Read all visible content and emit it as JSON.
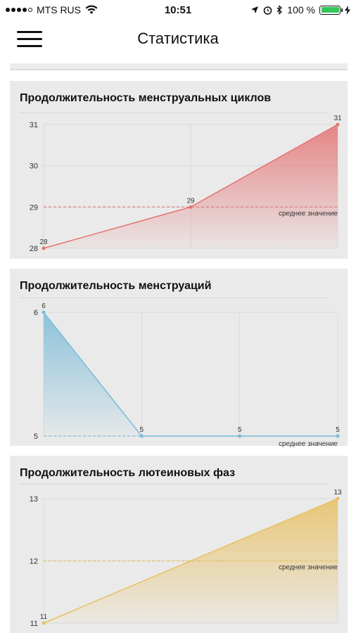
{
  "status_bar": {
    "carrier": "MTS RUS",
    "time": "10:51",
    "battery_percent": "100 %",
    "battery_level": 1.0,
    "signal_bars": 4
  },
  "nav": {
    "title": "Статистика"
  },
  "colors": {
    "red": "#e57373",
    "blue": "#7bbbd9",
    "yellow": "#e8c062"
  },
  "charts": [
    {
      "title": "Продолжительность менструальных циклов",
      "average_label": "среднее значение",
      "color": "#e57373",
      "chart_data": {
        "type": "area",
        "x": [
          1,
          2,
          3
        ],
        "values": [
          28,
          29,
          31
        ],
        "point_labels": [
          "28",
          "29",
          "31"
        ],
        "y_ticks": [
          "28",
          "29",
          "30",
          "31"
        ],
        "ylim": [
          28,
          31
        ],
        "average": 29,
        "grid": true
      }
    },
    {
      "title": "Продолжительность менструаций",
      "average_label": "среднее значение",
      "color": "#7bbbd9",
      "chart_data": {
        "type": "area",
        "x": [
          1,
          2,
          3,
          4
        ],
        "values": [
          6,
          5,
          5,
          5
        ],
        "point_labels": [
          "6",
          "5",
          "5",
          "5"
        ],
        "y_ticks": [
          "5",
          "6"
        ],
        "ylim": [
          5,
          6
        ],
        "average": 5,
        "grid": true
      }
    },
    {
      "title": "Продолжительность лютеиновых фаз",
      "average_label": "среднее значение",
      "color": "#e8c062",
      "chart_data": {
        "type": "area",
        "x": [
          1,
          2
        ],
        "values": [
          11,
          13
        ],
        "point_labels": [
          "11",
          "13"
        ],
        "y_ticks": [
          "11",
          "12",
          "13"
        ],
        "ylim": [
          11,
          13
        ],
        "average": 12,
        "grid": true
      }
    }
  ]
}
